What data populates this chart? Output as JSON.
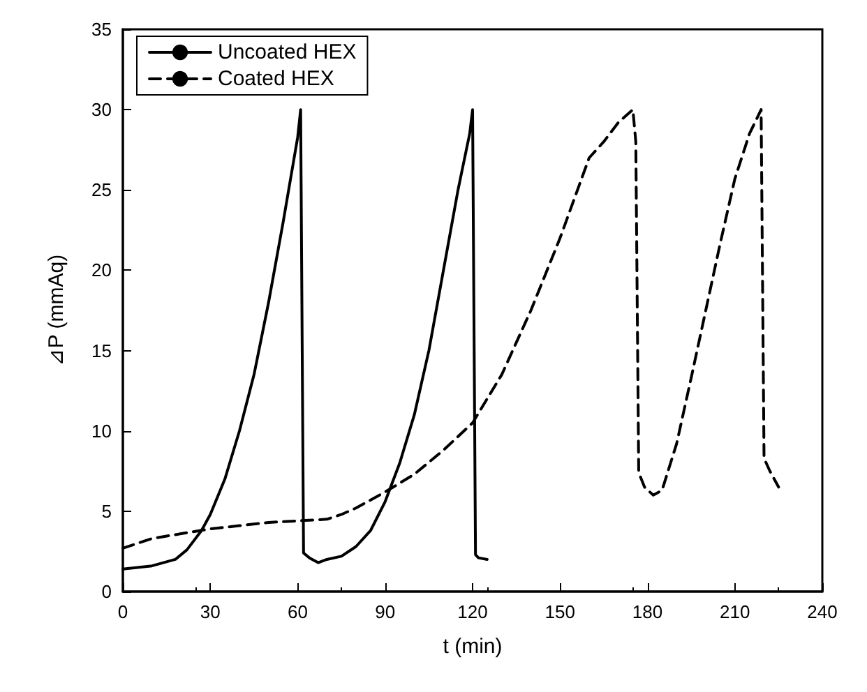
{
  "chart_data": {
    "type": "line",
    "xlabel": "t (min)",
    "ylabel": "⊿P (mmAq)",
    "xlim": [
      0,
      240
    ],
    "xticks": [
      0,
      30,
      60,
      90,
      120,
      150,
      180,
      210,
      240
    ],
    "ylim": [
      0,
      35
    ],
    "yticks": [
      0,
      5,
      10,
      15,
      20,
      25,
      30,
      35
    ],
    "grid": false,
    "legend": "top left",
    "marker": "none",
    "series": [
      {
        "name": "Uncoated HEX",
        "color": "#000000",
        "line_style": "solid",
        "x": [
          0,
          10,
          18,
          22,
          27,
          30,
          35,
          40,
          45,
          50,
          55,
          60,
          61,
          62,
          64,
          67,
          70,
          75,
          80,
          85,
          90,
          95,
          100,
          105,
          110,
          115,
          119,
          120,
          121,
          122,
          125
        ],
        "values": [
          1.4,
          1.6,
          2.0,
          2.6,
          3.8,
          4.8,
          7,
          10,
          13.5,
          18,
          23,
          28.3,
          30,
          2.4,
          2.1,
          1.8,
          2.0,
          2.2,
          2.8,
          3.8,
          5.6,
          8,
          11,
          15,
          20,
          25,
          28.5,
          30,
          2.3,
          2.1,
          2.0
        ]
      },
      {
        "name": "Coated HEX",
        "color": "#000000",
        "line_style": "dashed",
        "x": [
          0,
          10,
          20,
          30,
          40,
          50,
          60,
          70,
          75,
          80,
          90,
          100,
          110,
          120,
          125,
          130,
          140,
          150,
          155,
          160,
          165,
          170,
          175,
          176,
          177,
          179,
          182,
          185,
          190,
          195,
          200,
          205,
          210,
          215,
          219,
          220,
          222,
          225
        ],
        "values": [
          2.7,
          3.3,
          3.6,
          3.9,
          4.1,
          4.3,
          4.4,
          4.5,
          4.8,
          5.2,
          6.2,
          7.3,
          8.8,
          10.5,
          12,
          13.5,
          17.5,
          22,
          24.5,
          27,
          28,
          29.2,
          30,
          28,
          7.4,
          6.5,
          6,
          6.3,
          9.2,
          13.3,
          17.5,
          21.7,
          25.7,
          28.5,
          30,
          8.3,
          7.5,
          6.5
        ]
      }
    ]
  }
}
